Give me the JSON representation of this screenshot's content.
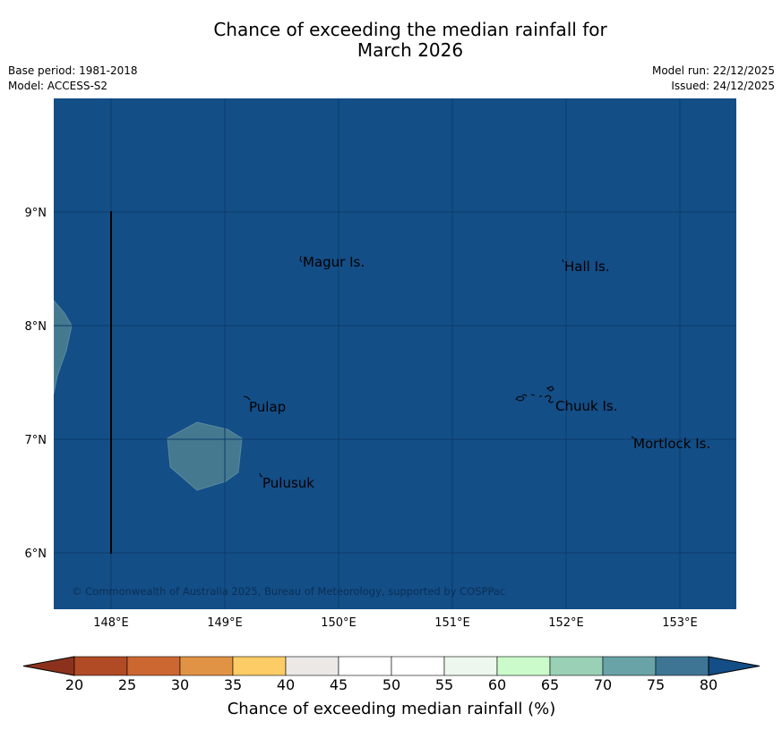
{
  "title": {
    "line1": "Chance of exceeding the median rainfall for",
    "line2": "March 2026"
  },
  "meta": {
    "base_period": "Base period: 1981-2018",
    "model": "Model: ACCESS-S2",
    "model_run": "Model run: 22/12/2025",
    "issued": "Issued: 24/12/2025"
  },
  "map": {
    "lat_labels": [
      "9°N",
      "8°N",
      "7°N",
      "6°N"
    ],
    "lon_labels": [
      "148°E",
      "149°E",
      "150°E",
      "151°E",
      "152°E",
      "153°E"
    ],
    "places": [
      "Magur Is.",
      "Hall Is.",
      "Pulap",
      "Chuuk Is.",
      "Mortlock Is.",
      "Pulusuk"
    ],
    "copyright": "© Commonwealth of Australia 2025, Bureau of Meteorology, supported by COSPPac",
    "colors": {
      "background": "#134e87",
      "patch": "#45798f",
      "patch_edge": "#5a8aa0",
      "gridline": "#0c3c68"
    }
  },
  "colorbar": {
    "ticks": [
      "20",
      "25",
      "30",
      "35",
      "40",
      "45",
      "50",
      "55",
      "60",
      "65",
      "70",
      "75",
      "80"
    ],
    "label": "Chance of exceeding median rainfall (%)",
    "colors": [
      "#b14b26",
      "#cd6732",
      "#e19345",
      "#fdcc66",
      "#ebe8e6",
      "#ffffff",
      "#ffffff",
      "#eef7ee",
      "#ccfbcb",
      "#99d0b6",
      "#69a3a8",
      "#3f7594",
      "#134e87"
    ],
    "under_color": "#8c321c"
  }
}
